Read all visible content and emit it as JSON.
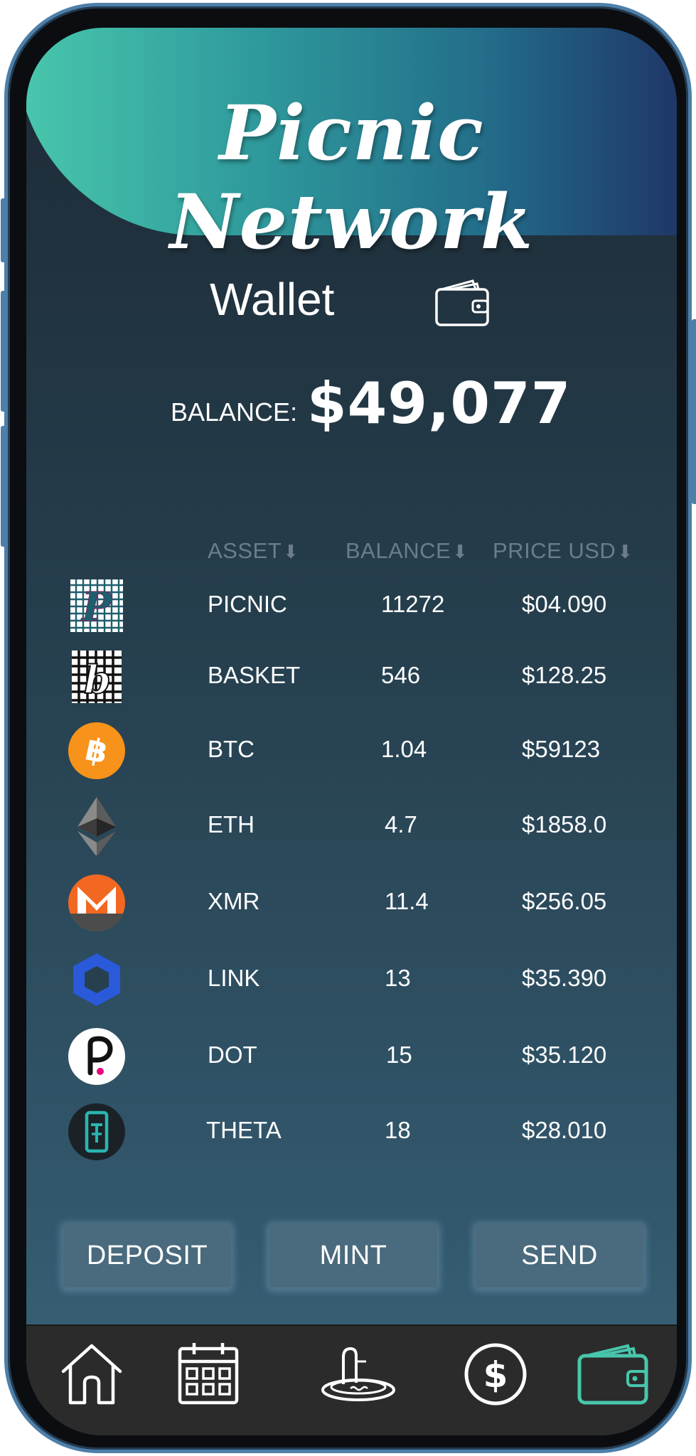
{
  "app": {
    "title": "Picnic Network"
  },
  "wallet": {
    "title": "Wallet",
    "icon": "wallet-icon",
    "balance_label": "BALANCE:",
    "balance_value": "$49,077"
  },
  "table": {
    "headers": {
      "asset": "ASSET",
      "balance": "BALANCE",
      "price": "PRICE USD"
    },
    "sort_icon": "arrow-down-icon",
    "rows": [
      {
        "asset": "PICNIC",
        "balance": "11272",
        "price": "$04.090",
        "icon": "picnic-logo-icon"
      },
      {
        "asset": "BASKET",
        "balance": "546",
        "price": "$128.25",
        "icon": "basket-logo-icon"
      },
      {
        "asset": "BTC",
        "balance": "1.04",
        "price": "$59123",
        "icon": "bitcoin-icon"
      },
      {
        "asset": "ETH",
        "balance": "4.7",
        "price": "$1858.0",
        "icon": "ethereum-icon"
      },
      {
        "asset": "XMR",
        "balance": "11.4",
        "price": "$256.05",
        "icon": "monero-icon"
      },
      {
        "asset": "LINK",
        "balance": "13",
        "price": "$35.390",
        "icon": "chainlink-icon"
      },
      {
        "asset": "DOT",
        "balance": "15",
        "price": "$35.120",
        "icon": "polkadot-icon"
      },
      {
        "asset": "THETA",
        "balance": "18",
        "price": "$28.010",
        "icon": "theta-icon"
      }
    ]
  },
  "actions": {
    "deposit": "DEPOSIT",
    "mint": "MINT",
    "send": "SEND"
  },
  "nav": {
    "items": [
      "home-icon",
      "calendar-icon",
      "picnic-basket-icon",
      "dollar-icon",
      "wallet-icon"
    ],
    "active": "wallet-icon"
  },
  "colors": {
    "accent_green": "#48c6ac",
    "header_blue": "#1f3768",
    "btc_orange": "#f7931a",
    "xmr_orange": "#f26822",
    "link_blue": "#2a5ada",
    "dot_pink": "#e6007a",
    "theta_cyan": "#29b6af"
  }
}
